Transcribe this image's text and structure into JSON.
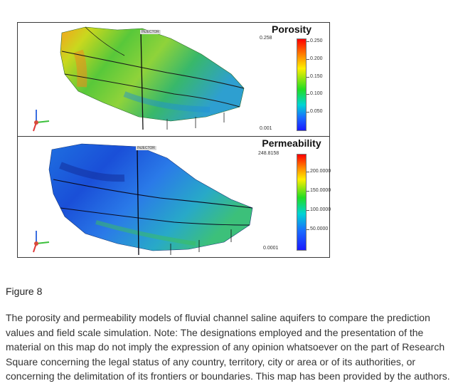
{
  "figure": {
    "porosity_panel": {
      "title": "Porosity",
      "max_label": "0.258",
      "min_label": "0.001",
      "ticks": [
        "0.250",
        "0.200",
        "0.150",
        "0.100",
        "0.050"
      ],
      "well_label": "INJECTOR"
    },
    "permeability_panel": {
      "title": "Permeability",
      "max_label": "248.8158",
      "min_label": "0.0001",
      "ticks": [
        "200.0000",
        "150.0000",
        "100.0000",
        "50.0000"
      ],
      "well_label": "INJECTOR"
    }
  },
  "caption": {
    "title": "Figure 8",
    "text": "The porosity and permeability models of fluvial channel saline aquifers to compare the prediction values and field scale simulation. Note: The designations employed and the presentation of the material on this map do not imply the expression of any opinion whatsoever on the part of Research Square concerning the legal status of any country, territory, city or area or of its authorities, or concerning the delimitation of its frontiers or boundaries. This map has been provided by the authors."
  }
}
